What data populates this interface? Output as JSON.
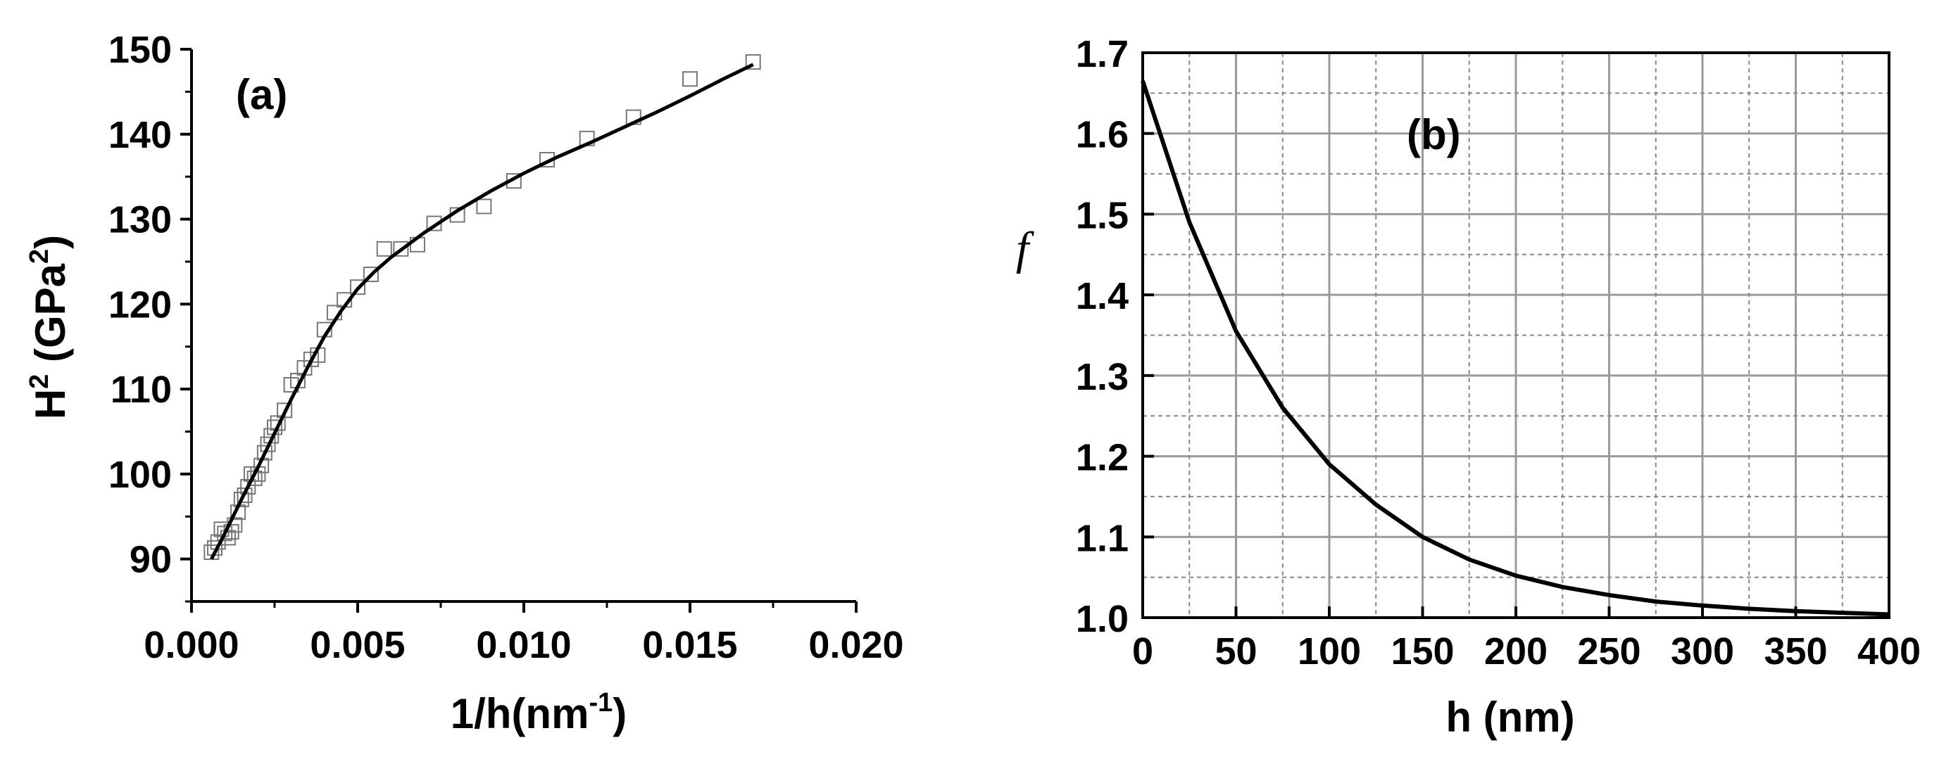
{
  "chart_data": [
    {
      "panel": "(a)",
      "type": "scatter",
      "xlabel": "1/h(nm",
      "xlabel_superscript": "-1",
      "xlabel_suffix": ")",
      "ylabel": "H",
      "ylabel_superscript": "2",
      "ylabel_middle": " (GPa",
      "ylabel_superscript2": "2",
      "ylabel_suffix": ")",
      "xlim": [
        0.0,
        0.02
      ],
      "ylim": [
        85,
        150
      ],
      "xticks": [
        "0.000",
        "0.005",
        "0.010",
        "0.015",
        "0.020"
      ],
      "xtick_values": [
        0.0,
        0.005,
        0.01,
        0.015,
        0.02
      ],
      "yticks": [
        "90",
        "100",
        "110",
        "120",
        "130",
        "140",
        "150"
      ],
      "ytick_values": [
        90,
        100,
        110,
        120,
        130,
        140,
        150
      ],
      "marker": "open-square",
      "grid": false,
      "series": [
        {
          "kind": "points",
          "x": [
            0.0006,
            0.0007,
            0.0008,
            0.0009,
            0.001,
            0.0011,
            0.0012,
            0.0013,
            0.0014,
            0.0015,
            0.0016,
            0.0017,
            0.0018,
            0.0019,
            0.002,
            0.0021,
            0.0022,
            0.0023,
            0.0024,
            0.0025,
            0.0026,
            0.0028,
            0.003,
            0.0032,
            0.0034,
            0.0036,
            0.0038,
            0.004,
            0.0043,
            0.0046,
            0.005,
            0.0054,
            0.0058,
            0.0063,
            0.0068,
            0.0073,
            0.008,
            0.0088,
            0.0097,
            0.0107,
            0.0119,
            0.0133,
            0.015,
            0.0169
          ],
          "y": [
            90.8,
            91.3,
            92.0,
            93.5,
            93.0,
            92.5,
            93.2,
            94.0,
            95.5,
            97.0,
            97.5,
            98.5,
            100.0,
            99.5,
            100.0,
            101.0,
            102.5,
            103.5,
            104.5,
            105.5,
            106.0,
            107.5,
            110.5,
            111.0,
            112.5,
            113.5,
            114.0,
            117.0,
            119.0,
            120.5,
            122.0,
            123.5,
            126.5,
            126.5,
            127.0,
            129.5,
            130.5,
            131.5,
            134.5,
            137.0,
            139.5,
            142.0,
            146.5,
            148.5
          ]
        },
        {
          "kind": "line",
          "x": [
            0.0006,
            0.001,
            0.0015,
            0.002,
            0.0025,
            0.003,
            0.0035,
            0.004,
            0.0045,
            0.005,
            0.0055,
            0.006,
            0.007,
            0.008,
            0.009,
            0.01,
            0.011,
            0.012,
            0.013,
            0.014,
            0.015,
            0.016,
            0.0169
          ],
          "y": [
            90.0,
            93.0,
            97.0,
            100.8,
            104.8,
            108.8,
            112.6,
            116.2,
            119.2,
            121.8,
            123.8,
            125.5,
            128.4,
            131.0,
            133.3,
            135.4,
            137.3,
            139.0,
            140.8,
            142.6,
            144.5,
            146.5,
            148.2
          ]
        }
      ]
    },
    {
      "panel": "(b)",
      "type": "line",
      "xlabel": "h (nm)",
      "ylabel": "f",
      "xlim": [
        0,
        400
      ],
      "ylim": [
        1.0,
        1.7
      ],
      "xticks": [
        "0",
        "50",
        "100",
        "150",
        "200",
        "250",
        "300",
        "350",
        "400"
      ],
      "xtick_values": [
        0,
        50,
        100,
        150,
        200,
        250,
        300,
        350,
        400
      ],
      "yticks": [
        "1.0",
        "1.1",
        "1.2",
        "1.3",
        "1.4",
        "1.5",
        "1.6",
        "1.7"
      ],
      "ytick_values": [
        1.0,
        1.1,
        1.2,
        1.3,
        1.4,
        1.5,
        1.6,
        1.7
      ],
      "grid": true,
      "series": [
        {
          "kind": "line",
          "x": [
            0,
            25,
            50,
            75,
            100,
            125,
            150,
            175,
            200,
            225,
            250,
            275,
            300,
            325,
            350,
            375,
            400
          ],
          "y": [
            1.665,
            1.49,
            1.355,
            1.26,
            1.19,
            1.14,
            1.1,
            1.072,
            1.052,
            1.038,
            1.028,
            1.02,
            1.015,
            1.011,
            1.008,
            1.006,
            1.004
          ]
        }
      ]
    }
  ]
}
